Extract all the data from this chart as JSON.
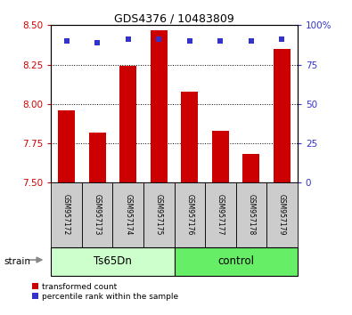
{
  "title": "GDS4376 / 10483809",
  "samples": [
    "GSM957172",
    "GSM957173",
    "GSM957174",
    "GSM957175",
    "GSM957176",
    "GSM957177",
    "GSM957178",
    "GSM957179"
  ],
  "transformed_counts": [
    7.96,
    7.82,
    8.24,
    8.47,
    8.08,
    7.83,
    7.68,
    8.35
  ],
  "percentile_ranks": [
    90,
    89,
    91,
    91,
    90,
    90,
    90,
    91
  ],
  "ylim_left": [
    7.5,
    8.5
  ],
  "ylim_right": [
    0,
    100
  ],
  "yticks_left": [
    7.5,
    7.75,
    8.0,
    8.25,
    8.5
  ],
  "yticks_right": [
    0,
    25,
    50,
    75,
    100
  ],
  "bar_color": "#cc0000",
  "dot_color": "#3333cc",
  "bar_width": 0.55,
  "groups": [
    {
      "label": "Ts65Dn",
      "indices": [
        0,
        1,
        2,
        3
      ],
      "color": "#ccffcc"
    },
    {
      "label": "control",
      "indices": [
        4,
        5,
        6,
        7
      ],
      "color": "#66ee66"
    }
  ],
  "group_row_label": "strain",
  "legend_items": [
    {
      "label": "transformed count",
      "color": "#cc0000"
    },
    {
      "label": "percentile rank within the sample",
      "color": "#3333cc"
    }
  ],
  "background_color": "#ffffff",
  "tick_label_color_left": "#cc0000",
  "tick_label_color_right": "#3333cc",
  "sample_box_color": "#cccccc",
  "title_fontsize": 9
}
